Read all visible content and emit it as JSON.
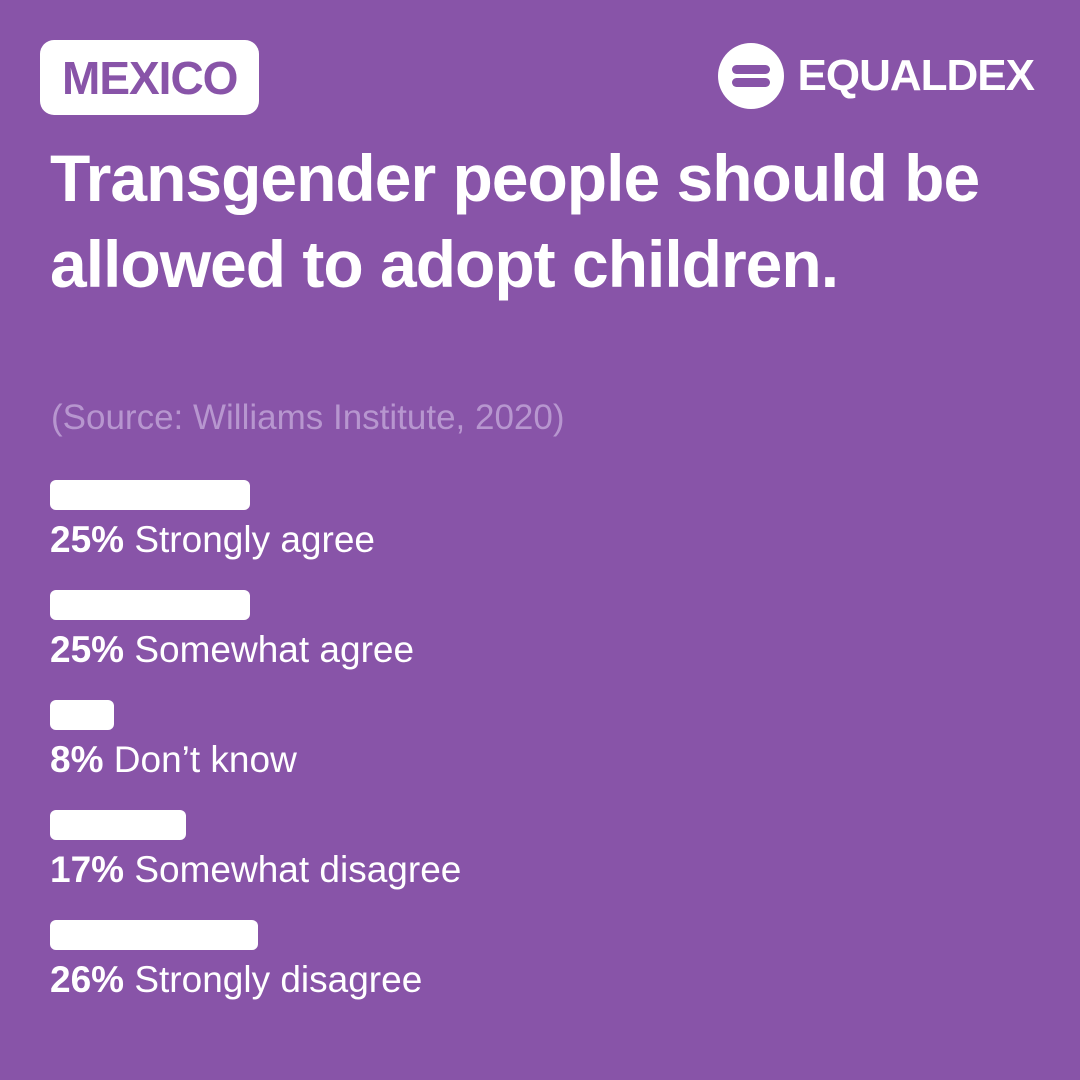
{
  "header": {
    "country": "MEXICO",
    "brand": "EQUALDEX",
    "brand_icon": "equaldex-logo-icon"
  },
  "colors": {
    "background": "#8854A8",
    "accent": "#ffffff",
    "source_text": "#B796CF"
  },
  "title": "Transgender people should be allowed to adopt children.",
  "source": "(Source: Williams Institute, 2020)",
  "chart_data": {
    "type": "bar",
    "orientation": "horizontal",
    "title": "Transgender people should be allowed to adopt children.",
    "categories": [
      "Strongly agree",
      "Somewhat agree",
      "Don’t know",
      "Somewhat disagree",
      "Strongly disagree"
    ],
    "values": [
      25,
      25,
      8,
      17,
      26
    ],
    "value_labels": [
      "25%",
      "25%",
      "8%",
      "17%",
      "26%"
    ],
    "unit": "%",
    "xlim": [
      0,
      100
    ],
    "grid": false,
    "legend": false
  }
}
